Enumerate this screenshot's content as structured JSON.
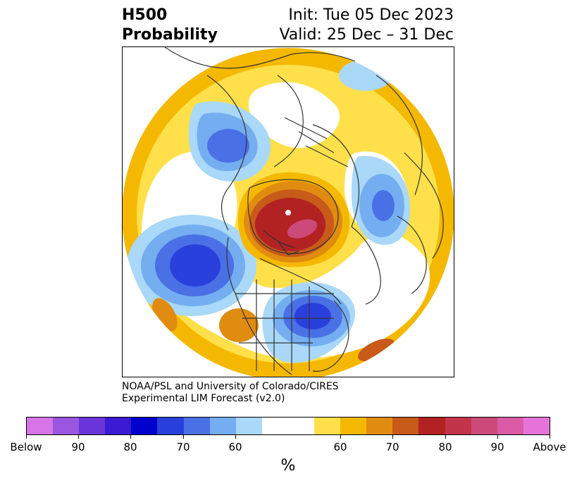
{
  "title": {
    "left_line1": "H500",
    "left_line2": "Probability",
    "right_line1": "Init: Tue 05 Dec 2023",
    "right_line2": "Valid: 25 Dec – 31 Dec"
  },
  "credit": {
    "line1": "NOAA/PSL and University of Colorado/CIRES",
    "line2": "Experimental LIM Forecast (v2.0)"
  },
  "colorbar": {
    "unit": "%",
    "colors": [
      "#d774e8",
      "#9b56e0",
      "#6a35d8",
      "#3a1ad2",
      "#0000cd",
      "#2a40dc",
      "#4a70e6",
      "#74aef0",
      "#a9d8f8",
      "#ffffff",
      "#ffe04a",
      "#f5b800",
      "#e08c10",
      "#c85a1a",
      "#b22222",
      "#c2344a",
      "#cc4a7a",
      "#da5aa8",
      "#e674d8"
    ],
    "tick_labels": [
      "Below",
      "90",
      "80",
      "70",
      "60",
      "60",
      "70",
      "80",
      "90",
      "Above"
    ]
  },
  "map": {
    "projection": "polar-stereographic",
    "hemisphere": "northern",
    "features": [
      {
        "name": "strong-positive-anomaly-greenland",
        "category": "above",
        "level": "80-90%"
      },
      {
        "name": "negative-anomaly-north-pacific",
        "category": "below",
        "level": "70-80%"
      },
      {
        "name": "negative-anomaly-eastern-us",
        "category": "below",
        "level": "70-80%"
      },
      {
        "name": "negative-anomaly-eastern-russia",
        "category": "below",
        "level": "60-70%"
      },
      {
        "name": "negative-anomaly-europe",
        "category": "below",
        "level": "60-70%"
      }
    ]
  }
}
